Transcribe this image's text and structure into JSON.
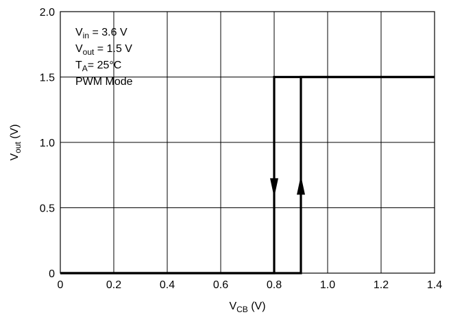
{
  "chart_data": {
    "type": "line",
    "title": "",
    "x_axis": {
      "label_main": "V",
      "label_sub": "CB",
      "label_unit": " (V)",
      "range": [
        0,
        1.4
      ],
      "ticks": [
        0,
        0.2,
        0.4,
        0.6,
        0.8,
        1.0,
        1.2,
        1.4
      ],
      "tick_labels": [
        "0",
        "0.2",
        "0.4",
        "0.6",
        "0.8",
        "1.0",
        "1.2",
        "1.4"
      ]
    },
    "y_axis": {
      "label_main": "V",
      "label_sub": "out",
      "label_unit": " (V)",
      "range": [
        0,
        2.0
      ],
      "ticks": [
        0,
        0.5,
        1.0,
        1.5,
        2.0
      ],
      "tick_labels": [
        "0",
        "0.5",
        "1.0",
        "1.5",
        "2.0"
      ]
    },
    "grid": true,
    "series": [
      {
        "points": [
          [
            0,
            0
          ],
          [
            0.9,
            0
          ],
          [
            0.9,
            1.5
          ],
          [
            1.4,
            1.5
          ]
        ],
        "arrow": {
          "x": 0.9,
          "y": 0.6,
          "direction": "up"
        }
      },
      {
        "points": [
          [
            1.4,
            1.5
          ],
          [
            0.8,
            1.5
          ],
          [
            0.8,
            0
          ],
          [
            0,
            0
          ]
        ],
        "arrow": {
          "x": 0.8,
          "y": 0.6,
          "direction": "down"
        }
      }
    ],
    "annotations": [
      {
        "main": "V",
        "sub": "in",
        "rest": " = 3.6 V"
      },
      {
        "main": "V",
        "sub": "out",
        "rest": " = 1.5 V"
      },
      {
        "main": "T",
        "sub": "A",
        "rest": "= 25°C"
      },
      {
        "main": "PWM Mode",
        "sub": "",
        "rest": ""
      }
    ]
  }
}
